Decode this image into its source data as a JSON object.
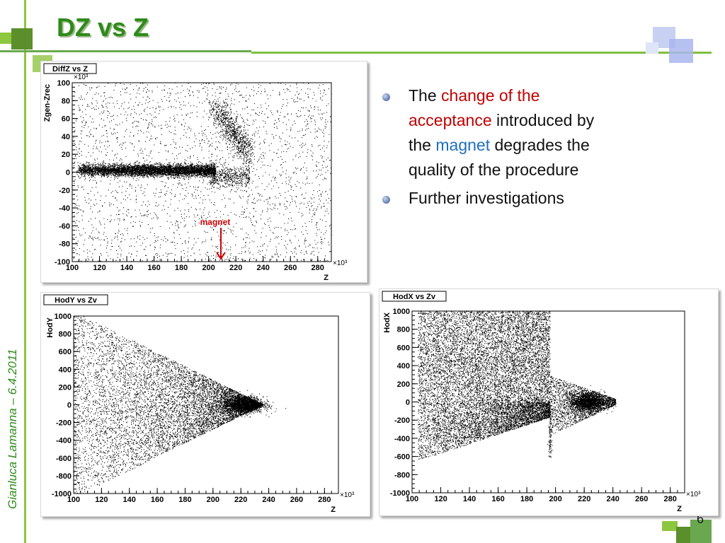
{
  "slide": {
    "title": "DZ vs Z",
    "side_credit": "Gianluca Lamanna – 6.4.2011",
    "page_number": "6"
  },
  "bullets": [
    {
      "segments": [
        {
          "text": "The ",
          "style": "normal"
        },
        {
          "text": "change of the acceptance",
          "style": "red"
        },
        {
          "text": " introduced by the ",
          "style": "normal"
        },
        {
          "text": "magnet",
          "style": "blue"
        },
        {
          "text": " degrades the quality of the procedure",
          "style": "normal"
        }
      ]
    },
    {
      "segments": [
        {
          "text": "Further investigations",
          "style": "normal"
        }
      ]
    }
  ],
  "colors": {
    "title_green": "#2e8b1a",
    "line_green": "#8dc63f",
    "red_text": "#c00000",
    "blue_text": "#1f6fc0",
    "annotation_red": "#cc0000"
  },
  "chart_data": [
    {
      "type": "scatter",
      "title": "DiffZ vs Z",
      "xlabel": "Z",
      "ylabel": "Zgen-Zrec",
      "x_multiplier": "×10³",
      "y_multiplier": "×10³",
      "xlim": [
        100,
        290
      ],
      "ylim": [
        -100,
        100
      ],
      "x_ticks": [
        100,
        120,
        140,
        160,
        180,
        200,
        220,
        240,
        260,
        280
      ],
      "y_ticks": [
        -100,
        -80,
        -60,
        -40,
        -20,
        0,
        20,
        40,
        60,
        80,
        100
      ],
      "annotations": [
        {
          "text": "magnet",
          "x": 209,
          "y": -78
        }
      ],
      "regions": [
        {
          "name": "dense band",
          "x": [
            104,
            205
          ],
          "y": [
            -4,
            8
          ]
        },
        {
          "name": "magnet lobe",
          "x": [
            205,
            235
          ],
          "y": [
            15,
            75
          ]
        },
        {
          "name": "uniform background",
          "x": [
            100,
            290
          ],
          "y": [
            -100,
            100
          ]
        }
      ]
    },
    {
      "type": "scatter",
      "title": "HodY vs Zv",
      "xlabel": "Z",
      "ylabel": "HodY",
      "x_multiplier": "×10³",
      "xlim": [
        100,
        290
      ],
      "ylim": [
        -1000,
        1000
      ],
      "x_ticks": [
        100,
        120,
        140,
        160,
        180,
        200,
        220,
        240,
        260,
        280
      ],
      "y_ticks": [
        -1000,
        -800,
        -600,
        -400,
        -200,
        0,
        200,
        400,
        600,
        800,
        1000
      ],
      "regions": [
        {
          "name": "triangular envelope",
          "x": [
            100,
            235
          ],
          "y": [
            -1000,
            1000
          ],
          "apex": [
            235,
            0
          ]
        },
        {
          "name": "dense core",
          "x": [
            215,
            232
          ],
          "y": [
            -60,
            60
          ]
        }
      ]
    },
    {
      "type": "scatter",
      "title": "HodX vs Zv",
      "xlabel": "Z",
      "ylabel": "HodX",
      "x_multiplier": "×10³",
      "xlim": [
        100,
        290
      ],
      "ylim": [
        -1000,
        1000
      ],
      "x_ticks": [
        100,
        120,
        140,
        160,
        180,
        200,
        220,
        240,
        260,
        280
      ],
      "y_ticks": [
        -1000,
        -800,
        -600,
        -400,
        -200,
        0,
        200,
        400,
        600,
        800,
        1000
      ],
      "regions": [
        {
          "name": "upper region",
          "x": [
            105,
            196
          ],
          "y": [
            0,
            1000
          ]
        },
        {
          "name": "lower wedge",
          "x": [
            105,
            196
          ],
          "y": [
            -650,
            0
          ]
        },
        {
          "name": "post-magnet lobe",
          "x": [
            196,
            240
          ],
          "y": [
            -350,
            250
          ]
        },
        {
          "name": "dense core",
          "x": [
            212,
            232
          ],
          "y": [
            -60,
            60
          ]
        }
      ]
    }
  ]
}
